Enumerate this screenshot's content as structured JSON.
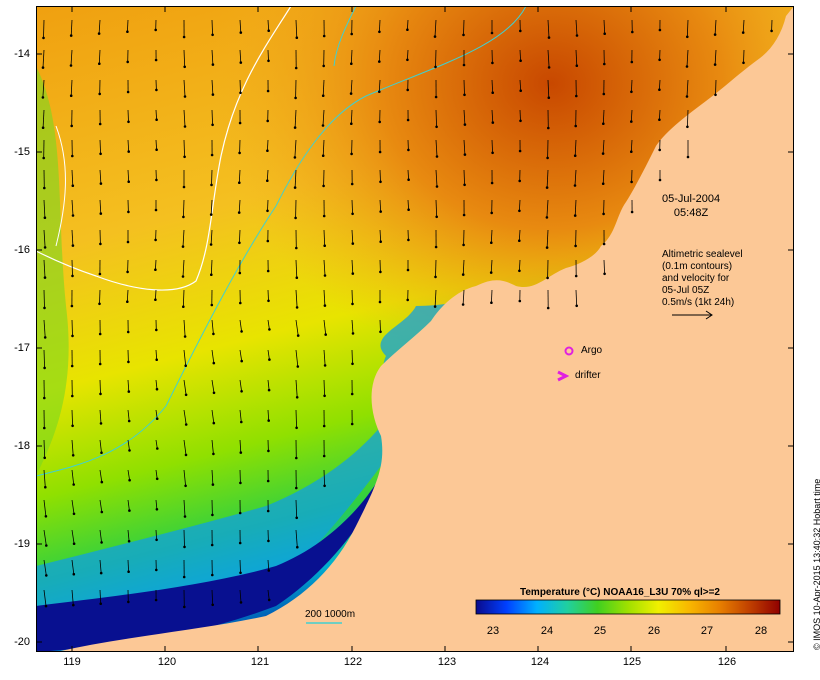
{
  "map": {
    "longitude_ticks": [
      "119",
      "120",
      "121",
      "122",
      "123",
      "124",
      "125",
      "126"
    ],
    "latitude_ticks": [
      "-14",
      "-15",
      "-16",
      "-17",
      "-18",
      "-19",
      "-20"
    ],
    "timestamp_line1": "05-Jul-2004",
    "timestamp_line2": "05:48Z",
    "altimetry_lines": [
      "Altimetric sealevel",
      "(0.1m contours)",
      "and velocity for",
      "05-Jul 05Z",
      "0.5m/s (1kt 24h)"
    ],
    "argo_label": "Argo",
    "drifter_label": "drifter",
    "depth_legend": "200  1000m",
    "colorbar_title": "Temperature (°C) NOAA16_L3U 70% ql>=2",
    "colorbar_ticks": [
      "23",
      "24",
      "25",
      "26",
      "27",
      "28"
    ],
    "credit": "© IMOS 10-Apr-2015 13:40:32 Hobart time",
    "colors": {
      "land": "#fcc896",
      "contour_200m": "#40d0d0",
      "argo_marker": "#e020e0",
      "drifter_marker": "#e020e0"
    },
    "colorbar_stops": [
      "#0a0a8c",
      "#0040ff",
      "#00b0ff",
      "#20d0a0",
      "#40d020",
      "#a0e000",
      "#f0f000",
      "#f8b800",
      "#e88000",
      "#c04000",
      "#900000"
    ]
  }
}
